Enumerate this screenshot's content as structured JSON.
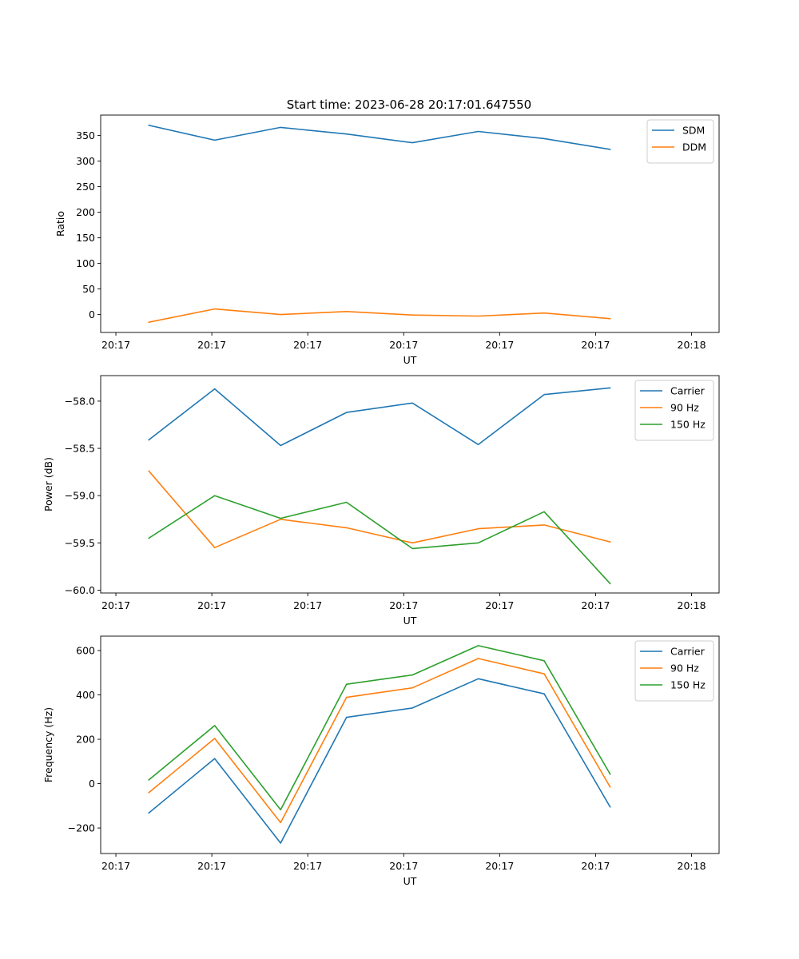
{
  "figure_title": "Start time: 2023-06-28 20:17:01.647550",
  "chart_data": [
    {
      "type": "line",
      "title": "Start time: 2023-06-28 20:17:01.647550",
      "xlabel": "UT",
      "ylabel": "Ratio",
      "x_ticklabels": [
        "20:17",
        "20:17",
        "20:17",
        "20:17",
        "20:17",
        "20:17",
        "20:18"
      ],
      "xlim": [
        -0.12,
        4.76
      ],
      "x": [
        0.26,
        0.78,
        1.3,
        1.82,
        2.34,
        2.86,
        3.38,
        3.9
      ],
      "ylim": [
        -35,
        390
      ],
      "yticks": [
        0,
        50,
        100,
        150,
        200,
        250,
        300,
        350
      ],
      "grid": false,
      "legend_position": "top-right",
      "series": [
        {
          "name": "SDM",
          "color": "#1f77b4",
          "values": [
            370,
            341,
            366,
            353,
            336,
            358,
            344,
            323
          ]
        },
        {
          "name": "DDM",
          "color": "#ff7f0e",
          "values": [
            -15,
            11,
            0,
            6,
            -1,
            -3,
            3,
            -8
          ]
        }
      ]
    },
    {
      "type": "line",
      "xlabel": "UT",
      "ylabel": "Power (dB)",
      "x_ticklabels": [
        "20:17",
        "20:17",
        "20:17",
        "20:17",
        "20:17",
        "20:17",
        "20:18"
      ],
      "xlim": [
        -0.12,
        4.76
      ],
      "x": [
        0.26,
        0.78,
        1.3,
        1.82,
        2.34,
        2.86,
        3.38,
        3.9
      ],
      "ylim": [
        -60.03,
        -57.73
      ],
      "yticks": [
        -60.0,
        -59.5,
        -59.0,
        -58.5,
        -58.0
      ],
      "ytick_labels": [
        "−60.0",
        "−59.5",
        "−59.0",
        "−58.5",
        "−58.0"
      ],
      "grid": false,
      "legend_position": "top-right",
      "series": [
        {
          "name": "Carrier",
          "color": "#1f77b4",
          "values": [
            -58.41,
            -57.87,
            -58.47,
            -58.12,
            -58.02,
            -58.46,
            -57.93,
            -57.86
          ]
        },
        {
          "name": "90 Hz",
          "color": "#ff7f0e",
          "values": [
            -58.74,
            -59.55,
            -59.25,
            -59.34,
            -59.5,
            -59.35,
            -59.31,
            -59.49
          ]
        },
        {
          "name": "150 Hz",
          "color": "#2ca02c",
          "values": [
            -59.45,
            -59.0,
            -59.24,
            -59.07,
            -59.56,
            -59.5,
            -59.17,
            -59.93
          ]
        }
      ]
    },
    {
      "type": "line",
      "xlabel": "UT",
      "ylabel": "Frequency (Hz)",
      "x_ticklabels": [
        "20:17",
        "20:17",
        "20:17",
        "20:17",
        "20:17",
        "20:17",
        "20:18"
      ],
      "xlim": [
        -0.12,
        4.76
      ],
      "x": [
        0.26,
        0.78,
        1.3,
        1.82,
        2.34,
        2.86,
        3.38,
        3.9
      ],
      "ylim": [
        -315,
        665
      ],
      "yticks": [
        -200,
        0,
        200,
        400,
        600
      ],
      "ytick_labels": [
        "−200",
        "0",
        "200",
        "400",
        "600"
      ],
      "grid": false,
      "legend_position": "top-right",
      "series": [
        {
          "name": "Carrier",
          "color": "#1f77b4",
          "values": [
            -132,
            113,
            -268,
            299,
            341,
            473,
            405,
            -105
          ]
        },
        {
          "name": "90 Hz",
          "color": "#ff7f0e",
          "values": [
            -40,
            204,
            -176,
            389,
            432,
            564,
            495,
            -15
          ]
        },
        {
          "name": "150 Hz",
          "color": "#2ca02c",
          "values": [
            17,
            262,
            -118,
            448,
            490,
            622,
            554,
            43
          ]
        }
      ]
    }
  ]
}
